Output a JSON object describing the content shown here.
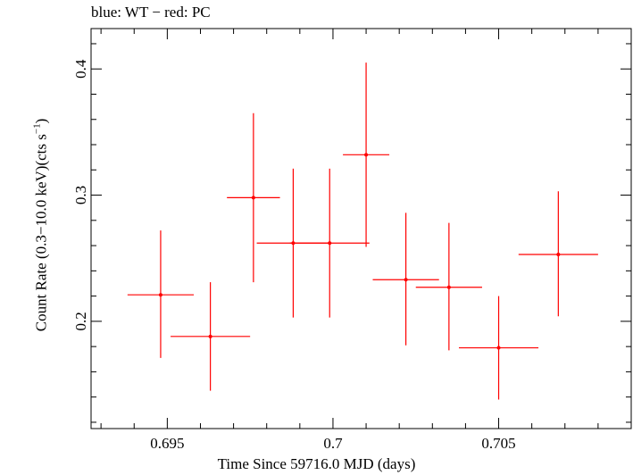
{
  "chart_data": {
    "type": "scatter",
    "title": "blue: WT − red: PC",
    "xlabel": "Time Since 59716.0 MJD (days)",
    "ylabel": "Count Rate (0.3−10.0 keV)(cts s",
    "ylabel_sup": "−1",
    "ylabel_tail": ")",
    "xlim": [
      0.6927,
      0.709
    ],
    "ylim": [
      0.115,
      0.432
    ],
    "x_ticks_major": [
      0.695,
      0.7,
      0.705
    ],
    "x_tick_labels": [
      "0.695",
      "0.7",
      "0.705"
    ],
    "y_ticks_major": [
      0.2,
      0.3,
      0.4
    ],
    "y_tick_labels": [
      "0.2",
      "0.3",
      "0.4"
    ],
    "grid": false,
    "series": [
      {
        "color": "#ff0000",
        "points": [
          {
            "x": 0.6948,
            "xerr": 0.001,
            "y": 0.221,
            "yerr_lo": 0.05,
            "yerr_hi": 0.051
          },
          {
            "x": 0.6963,
            "xerr": 0.0012,
            "y": 0.188,
            "yerr_lo": 0.043,
            "yerr_hi": 0.043
          },
          {
            "x": 0.6976,
            "xerr": 0.0008,
            "y": 0.298,
            "yerr_lo": 0.067,
            "yerr_hi": 0.067
          },
          {
            "x": 0.6988,
            "xerr": 0.0011,
            "y": 0.262,
            "yerr_lo": 0.059,
            "yerr_hi": 0.059
          },
          {
            "x": 0.6999,
            "xerr": 0.0012,
            "y": 0.262,
            "yerr_lo": 0.059,
            "yerr_hi": 0.059
          },
          {
            "x": 0.701,
            "xerr": 0.0007,
            "y": 0.332,
            "yerr_lo": 0.073,
            "yerr_hi": 0.073
          },
          {
            "x": 0.7022,
            "xerr": 0.001,
            "y": 0.233,
            "yerr_lo": 0.052,
            "yerr_hi": 0.053
          },
          {
            "x": 0.7035,
            "xerr": 0.001,
            "y": 0.227,
            "yerr_lo": 0.05,
            "yerr_hi": 0.051
          },
          {
            "x": 0.705,
            "xerr": 0.0012,
            "y": 0.179,
            "yerr_lo": 0.041,
            "yerr_hi": 0.041
          },
          {
            "x": 0.7068,
            "xerr": 0.0012,
            "y": 0.253,
            "yerr_lo": 0.049,
            "yerr_hi": 0.05
          }
        ]
      }
    ]
  }
}
